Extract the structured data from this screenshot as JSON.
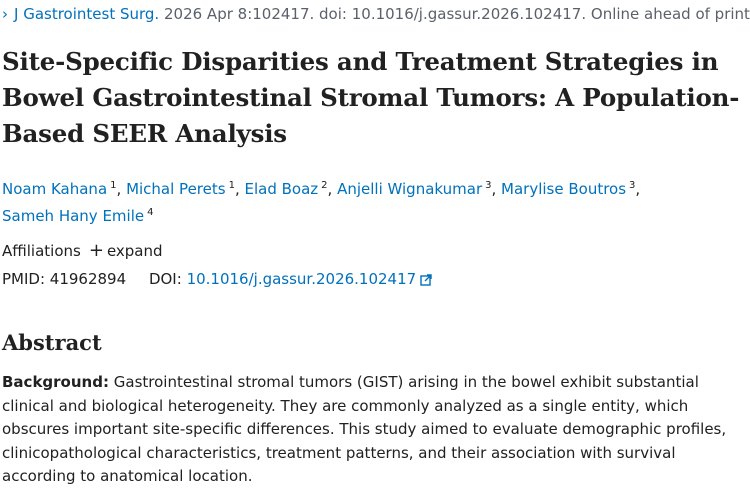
{
  "citation": {
    "journal": "J Gastrointest Surg.",
    "details": "2026 Apr 8:102417. doi: 10.1016/j.gassur.2026.102417. Online ahead of print."
  },
  "title": "Site-Specific Disparities and Treatment Strategies in Bowel Gastrointestinal Stromal Tumors: A Population-Based SEER Analysis",
  "authors": [
    {
      "name": "Noam Kahana",
      "aff": "1"
    },
    {
      "name": "Michal Perets",
      "aff": "1"
    },
    {
      "name": "Elad Boaz",
      "aff": "2"
    },
    {
      "name": "Anjelli Wignakumar",
      "aff": "3"
    },
    {
      "name": "Marylise Boutros",
      "aff": "3"
    },
    {
      "name": "Sameh Hany Emile",
      "aff": "4"
    }
  ],
  "affiliations": {
    "label": "Affiliations",
    "expand_label": "expand"
  },
  "ids": {
    "pmid_label": "PMID:",
    "pmid": "41962894",
    "doi_label": "DOI:",
    "doi": "10.1016/j.gassur.2026.102417"
  },
  "abstract": {
    "heading": "Abstract",
    "background_label": "Background:",
    "background_text": "Gastrointestinal stromal tumors (GIST) arising in the bowel exhibit substantial clinical and biological heterogeneity. They are commonly analyzed as a single entity, which obscures important site-specific differences. This study aimed to evaluate demographic profiles, clinicopathological characteristics, treatment patterns, and their association with survival according to anatomical location."
  },
  "icons": {
    "journal_chevron": "chevron-right-icon",
    "expand": "plus-icon",
    "doi_link": "external-link-icon"
  },
  "colors": {
    "link": "#0071bc",
    "text": "#212121",
    "muted": "#5b616b"
  }
}
